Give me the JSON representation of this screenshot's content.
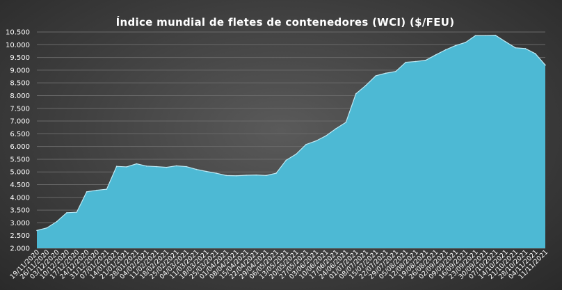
{
  "chart_data": {
    "type": "area",
    "title": "Índice mundial de fletes de contenedores (WCI) ($/FEU)",
    "xlabel": "",
    "ylabel": "",
    "ylim": [
      2000,
      10500
    ],
    "y_ticks": [
      "2.000",
      "2.500",
      "3.000",
      "3.500",
      "4.000",
      "4.500",
      "5.000",
      "5.500",
      "6.000",
      "6.500",
      "7.000",
      "7.500",
      "8.000",
      "8.500",
      "9.000",
      "9.500",
      "10.000",
      "10.500"
    ],
    "grid": true,
    "legend": "none",
    "colors": {
      "area_fill": "#4db9d4",
      "area_stroke": "#bfeaf5"
    },
    "x": [
      "19/11/2020",
      "26/11/2020",
      "03/12/2020",
      "10/12/2020",
      "17/12/2020",
      "24/12/2020",
      "31/12/2020",
      "07/01/2021",
      "14/01/2021",
      "21/01/2021",
      "28/01/2021",
      "04/02/2021",
      "11/02/2021",
      "18/02/2021",
      "25/02/2021",
      "04/03/2021",
      "11/03/2021",
      "18/03/2021",
      "25/03/2021",
      "01/04/2021",
      "08/04/2021",
      "15/04/2021",
      "22/04/2021",
      "29/04/2021",
      "06/05/2021",
      "13/05/2021",
      "20/05/2021",
      "27/05/2021",
      "03/06/2021",
      "10/06/2021",
      "17/06/2021",
      "24/06/2021",
      "01/07/2021",
      "08/07/2021",
      "15/07/2021",
      "22/07/2021",
      "29/07/2021",
      "05/08/2021",
      "12/08/2021",
      "19/08/2021",
      "26/08/2021",
      "02/09/2021",
      "09/09/2021",
      "16/09/2021",
      "23/09/2021",
      "30/09/2021",
      "07/10/2021",
      "14/10/2021",
      "21/10/2021",
      "28/10/2021",
      "04/11/2021",
      "11/11/2021"
    ],
    "values": [
      2700,
      2800,
      3050,
      3400,
      3420,
      4220,
      4280,
      4320,
      5220,
      5200,
      5320,
      5230,
      5210,
      5180,
      5240,
      5210,
      5100,
      5020,
      4950,
      4860,
      4850,
      4870,
      4880,
      4860,
      4950,
      5460,
      5700,
      6080,
      6220,
      6420,
      6700,
      6950,
      8070,
      8400,
      8780,
      8880,
      8950,
      9310,
      9340,
      9390,
      9600,
      9800,
      9970,
      10090,
      10360,
      10360,
      10370,
      10120,
      9880,
      9850,
      9650,
      9200
    ]
  }
}
